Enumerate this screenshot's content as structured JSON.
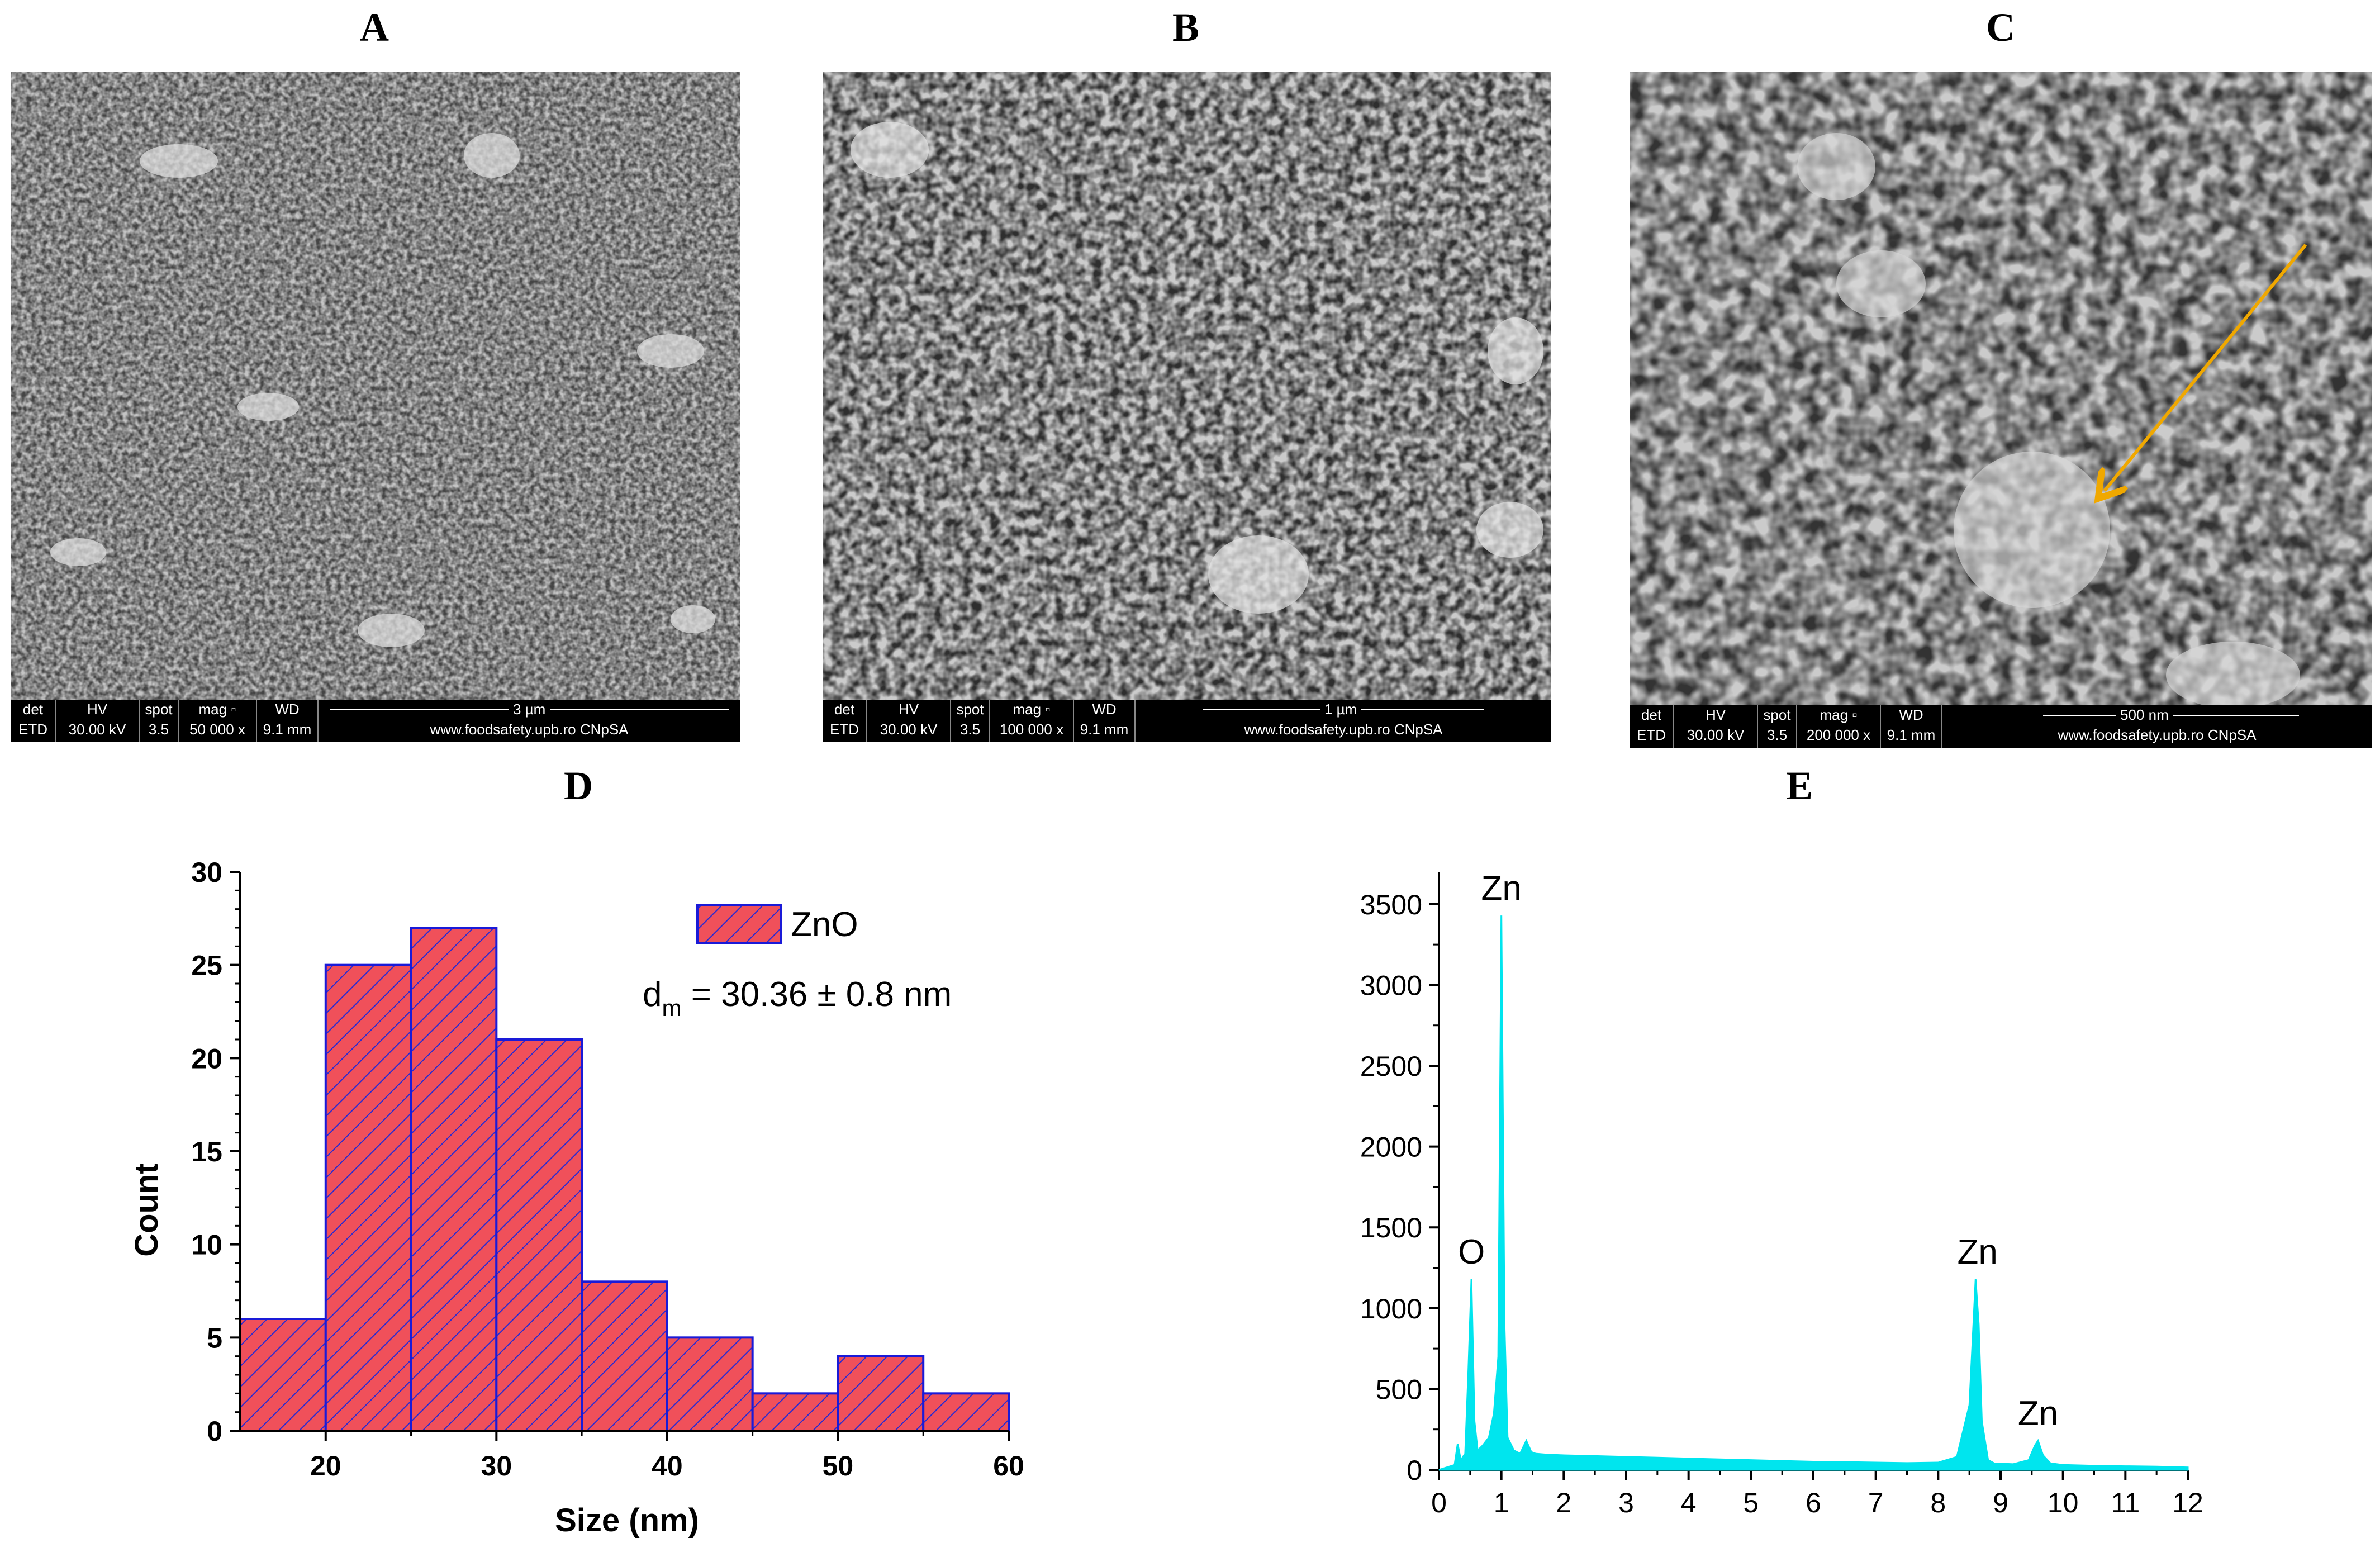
{
  "panels": {
    "a": {
      "letter": "A"
    },
    "b": {
      "letter": "B"
    },
    "c": {
      "letter": "C"
    },
    "d": {
      "letter": "D"
    },
    "e": {
      "letter": "E"
    }
  },
  "sem_bar_headers": {
    "det": "det",
    "hv": "HV",
    "spot": "spot",
    "mag": "mag ▫",
    "wd": "WD"
  },
  "sem": {
    "a": {
      "det": "ETD",
      "hv": "30.00 kV",
      "spot": "3.5",
      "mag": "50 000 x",
      "wd": "9.1 mm",
      "scale": "3 µm",
      "site": "www.foodsafety.upb.ro CNpSA"
    },
    "b": {
      "det": "ETD",
      "hv": "30.00 kV",
      "spot": "3.5",
      "mag": "100 000 x",
      "wd": "9.1 mm",
      "scale": "1 µm",
      "site": "www.foodsafety.upb.ro CNpSA"
    },
    "c": {
      "det": "ETD",
      "hv": "30.00 kV",
      "spot": "3.5",
      "mag": "200 000 x",
      "wd": "9.1 mm",
      "scale": "500 nm",
      "site": "www.foodsafety.upb.ro CNpSA"
    },
    "arrow_color": "#f0a800"
  },
  "chart_data": [
    {
      "type": "bar",
      "bins": [
        [
          15,
          20
        ],
        [
          20,
          25
        ],
        [
          25,
          30
        ],
        [
          30,
          35
        ],
        [
          35,
          40
        ],
        [
          40,
          45
        ],
        [
          45,
          50
        ],
        [
          50,
          55
        ],
        [
          55,
          60
        ]
      ],
      "values": [
        6,
        25,
        27,
        21,
        8,
        5,
        2,
        4,
        2
      ],
      "xlabel": "Size (nm)",
      "ylabel": "Count",
      "xlim": [
        15,
        60
      ],
      "ylim": [
        0,
        30
      ],
      "xticks": [
        20,
        30,
        40,
        50,
        60
      ],
      "yticks": [
        0,
        5,
        10,
        15,
        20,
        25,
        30
      ],
      "legend": "ZnO",
      "annotation": {
        "prefix": "d",
        "subscript": "m",
        "text": " = 30.36 ± 0.8 nm"
      },
      "fill_color": "#f0505a",
      "hatch_color": "#2a2ad0",
      "edge_color": "#1a1ad8"
    },
    {
      "type": "line",
      "xlim": [
        0,
        12
      ],
      "ylim": [
        0,
        3700
      ],
      "xticks": [
        0,
        1,
        2,
        3,
        4,
        5,
        6,
        7,
        8,
        9,
        10,
        11,
        12
      ],
      "yticks": [
        0,
        500,
        1000,
        1500,
        2000,
        2500,
        3000,
        3500
      ],
      "color": "#00e5ee",
      "x": [
        0,
        0.25,
        0.3,
        0.35,
        0.42,
        0.47,
        0.52,
        0.57,
        0.62,
        0.7,
        0.8,
        0.88,
        0.95,
        1.0,
        1.05,
        1.1,
        1.2,
        1.3,
        1.4,
        1.48,
        1.55,
        1.7,
        2.0,
        2.5,
        3.0,
        3.5,
        4.0,
        4.5,
        5.0,
        5.5,
        6.0,
        6.5,
        7.0,
        7.5,
        8.0,
        8.3,
        8.5,
        8.6,
        8.65,
        8.7,
        8.8,
        8.9,
        9.2,
        9.45,
        9.55,
        9.6,
        9.68,
        9.8,
        10.0,
        10.5,
        11.0,
        11.5,
        12.0
      ],
      "y": [
        0,
        30,
        160,
        60,
        100,
        600,
        1180,
        300,
        120,
        150,
        200,
        350,
        700,
        3430,
        900,
        200,
        120,
        100,
        180,
        110,
        100,
        95,
        90,
        85,
        80,
        75,
        70,
        65,
        60,
        55,
        50,
        48,
        45,
        42,
        45,
        80,
        400,
        1180,
        900,
        300,
        60,
        40,
        35,
        60,
        150,
        180,
        90,
        40,
        30,
        25,
        22,
        20,
        15
      ],
      "peaks": [
        {
          "label": "O",
          "x": 0.52,
          "y": 1180
        },
        {
          "label": "Zn",
          "x": 1.0,
          "y": 3430
        },
        {
          "label": "Zn",
          "x": 8.63,
          "y": 1180
        },
        {
          "label": "Zn",
          "x": 9.6,
          "y": 180
        }
      ]
    }
  ]
}
